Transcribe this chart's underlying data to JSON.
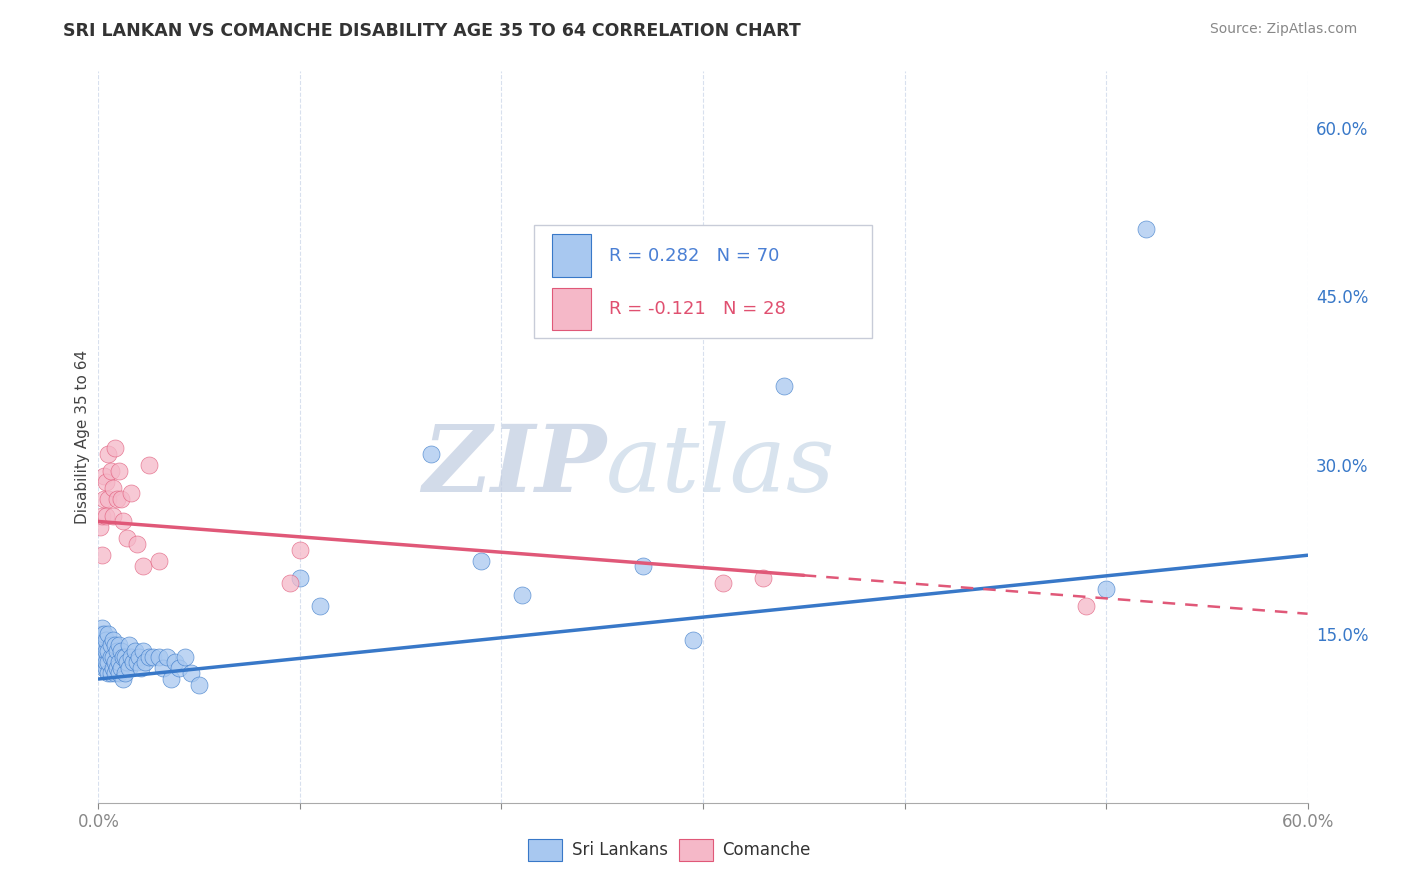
{
  "title": "SRI LANKAN VS COMANCHE DISABILITY AGE 35 TO 64 CORRELATION CHART",
  "source": "Source: ZipAtlas.com",
  "ylabel": "Disability Age 35 to 64",
  "right_yticks": [
    "15.0%",
    "30.0%",
    "45.0%",
    "60.0%"
  ],
  "right_ytick_vals": [
    0.15,
    0.3,
    0.45,
    0.6
  ],
  "xlim": [
    0.0,
    0.6
  ],
  "ylim": [
    0.0,
    0.65
  ],
  "sri_lankan_color": "#a8c8f0",
  "comanche_color": "#f5b8c8",
  "sri_lankan_R": 0.282,
  "sri_lankan_N": 70,
  "comanche_R": -0.121,
  "comanche_N": 28,
  "sri_lankan_x": [
    0.001,
    0.001,
    0.002,
    0.002,
    0.002,
    0.002,
    0.003,
    0.003,
    0.003,
    0.003,
    0.004,
    0.004,
    0.004,
    0.004,
    0.005,
    0.005,
    0.005,
    0.005,
    0.006,
    0.006,
    0.006,
    0.007,
    0.007,
    0.007,
    0.008,
    0.008,
    0.008,
    0.009,
    0.009,
    0.01,
    0.01,
    0.01,
    0.011,
    0.011,
    0.012,
    0.012,
    0.013,
    0.013,
    0.014,
    0.015,
    0.015,
    0.016,
    0.017,
    0.018,
    0.019,
    0.02,
    0.021,
    0.022,
    0.023,
    0.025,
    0.027,
    0.03,
    0.032,
    0.034,
    0.036,
    0.038,
    0.04,
    0.043,
    0.046,
    0.05,
    0.1,
    0.11,
    0.165,
    0.19,
    0.21,
    0.27,
    0.295,
    0.34,
    0.5,
    0.52
  ],
  "sri_lankan_y": [
    0.13,
    0.145,
    0.125,
    0.14,
    0.15,
    0.155,
    0.12,
    0.13,
    0.14,
    0.15,
    0.12,
    0.125,
    0.135,
    0.145,
    0.115,
    0.125,
    0.135,
    0.15,
    0.115,
    0.13,
    0.14,
    0.12,
    0.13,
    0.145,
    0.115,
    0.125,
    0.14,
    0.12,
    0.135,
    0.115,
    0.125,
    0.14,
    0.12,
    0.135,
    0.11,
    0.13,
    0.115,
    0.13,
    0.125,
    0.12,
    0.14,
    0.13,
    0.125,
    0.135,
    0.125,
    0.13,
    0.12,
    0.135,
    0.125,
    0.13,
    0.13,
    0.13,
    0.12,
    0.13,
    0.11,
    0.125,
    0.12,
    0.13,
    0.115,
    0.105,
    0.2,
    0.175,
    0.31,
    0.215,
    0.185,
    0.21,
    0.145,
    0.37,
    0.19,
    0.51
  ],
  "comanche_x": [
    0.001,
    0.002,
    0.002,
    0.003,
    0.003,
    0.004,
    0.004,
    0.005,
    0.005,
    0.006,
    0.007,
    0.007,
    0.008,
    0.009,
    0.01,
    0.011,
    0.012,
    0.014,
    0.016,
    0.019,
    0.022,
    0.025,
    0.03,
    0.095,
    0.1,
    0.31,
    0.33,
    0.49
  ],
  "comanche_y": [
    0.245,
    0.255,
    0.22,
    0.29,
    0.27,
    0.285,
    0.255,
    0.31,
    0.27,
    0.295,
    0.255,
    0.28,
    0.315,
    0.27,
    0.295,
    0.27,
    0.25,
    0.235,
    0.275,
    0.23,
    0.21,
    0.3,
    0.215,
    0.195,
    0.225,
    0.195,
    0.2,
    0.175
  ],
  "trend_blue_x0": 0.0,
  "trend_blue_x1": 0.6,
  "trend_blue_y0": 0.11,
  "trend_blue_y1": 0.22,
  "trend_pink_x0": 0.0,
  "trend_pink_x1": 0.6,
  "trend_pink_y0": 0.25,
  "trend_pink_y1": 0.168,
  "trend_pink_solid_end": 0.35,
  "watermark_zip": "ZIP",
  "watermark_atlas": "atlas",
  "trend_line_color_blue": "#3878c8",
  "trend_line_color_pink": "#e05878",
  "grid_color": "#d8e0ee",
  "background_color": "#ffffff",
  "legend_r_color": "#4a7fd4",
  "legend_n_color": "#e05070"
}
